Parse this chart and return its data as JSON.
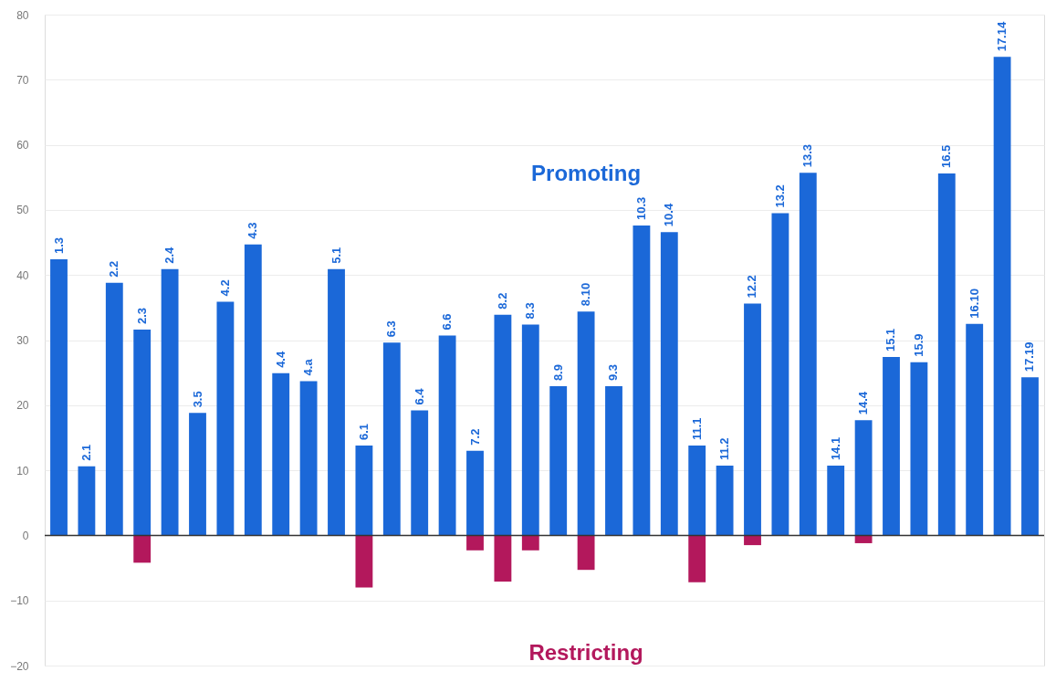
{
  "chart_data": {
    "type": "bar",
    "categories": [
      "1.3",
      "2.1",
      "2.2",
      "2.3",
      "2.4",
      "3.5",
      "4.2",
      "4.3",
      "4.4",
      "4.a",
      "5.1",
      "6.1",
      "6.3",
      "6.4",
      "6.6",
      "7.2",
      "8.2",
      "8.3",
      "8.9",
      "8.10",
      "9.3",
      "10.3",
      "10.4",
      "11.1",
      "11.2",
      "12.2",
      "13.2",
      "13.3",
      "14.1",
      "14.4",
      "15.1",
      "15.9",
      "16.5",
      "16.10",
      "17.14",
      "17.19"
    ],
    "series": [
      {
        "name": "Promoting",
        "color": "#1b68d8",
        "values": [
          42.4,
          10.6,
          38.8,
          31.6,
          40.9,
          18.8,
          35.9,
          44.7,
          24.9,
          23.7,
          40.9,
          13.8,
          29.6,
          19.2,
          30.7,
          13.0,
          33.9,
          32.4,
          22.9,
          34.4,
          22.9,
          47.6,
          46.6,
          13.8,
          10.7,
          35.6,
          49.5,
          55.7,
          10.7,
          17.7,
          27.4,
          26.6,
          55.6,
          32.5,
          73.5,
          24.3
        ]
      },
      {
        "name": "Restricting",
        "color": "#b3185c",
        "values": [
          null,
          null,
          null,
          -4.2,
          null,
          null,
          null,
          null,
          null,
          null,
          null,
          -8.0,
          null,
          null,
          null,
          -2.3,
          -7.1,
          -2.3,
          null,
          -5.3,
          null,
          null,
          null,
          -7.2,
          null,
          -1.5,
          null,
          null,
          null,
          -1.2,
          null,
          null,
          null,
          null,
          null,
          null
        ]
      }
    ],
    "ylim": [
      -20,
      80
    ],
    "yticks": [
      -20,
      -10,
      0,
      10,
      20,
      30,
      40,
      50,
      60,
      70,
      80
    ],
    "grid": "y",
    "tick_labels": "y",
    "ref_lines": [
      {
        "axis": "y",
        "value": 0,
        "color": "#333333"
      }
    ]
  }
}
